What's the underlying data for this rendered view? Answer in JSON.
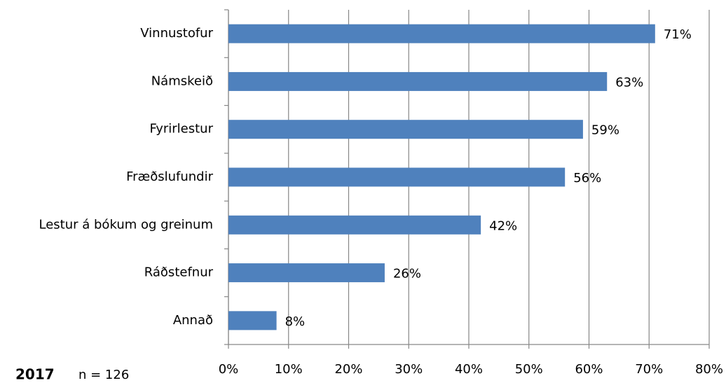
{
  "chart_data": {
    "type": "bar",
    "orientation": "horizontal",
    "categories": [
      "Vinnustofur",
      "Námskeið",
      "Fyrirlestur",
      "Fræðslufundir",
      "Lestur á bókum og greinum",
      "Ráðstefnur",
      "Annað"
    ],
    "values": [
      71,
      63,
      59,
      56,
      42,
      26,
      8
    ],
    "value_labels": [
      "71%",
      "63%",
      "59%",
      "56%",
      "42%",
      "26%",
      "8%"
    ],
    "color": "#4f81bd",
    "xlim": [
      0,
      80
    ],
    "xticks": [
      {
        "value": 0,
        "label": "0%"
      },
      {
        "value": 10,
        "label": "10%"
      },
      {
        "value": 20,
        "label": "20%"
      },
      {
        "value": 30,
        "label": "30%"
      },
      {
        "value": 40,
        "label": "40%"
      },
      {
        "value": 50,
        "label": "50%"
      },
      {
        "value": 60,
        "label": "60%"
      },
      {
        "value": 70,
        "label": "70%"
      },
      {
        "value": 80,
        "label": "80%"
      }
    ],
    "grid": true,
    "annotations": [
      "2017",
      "n = 126"
    ]
  }
}
